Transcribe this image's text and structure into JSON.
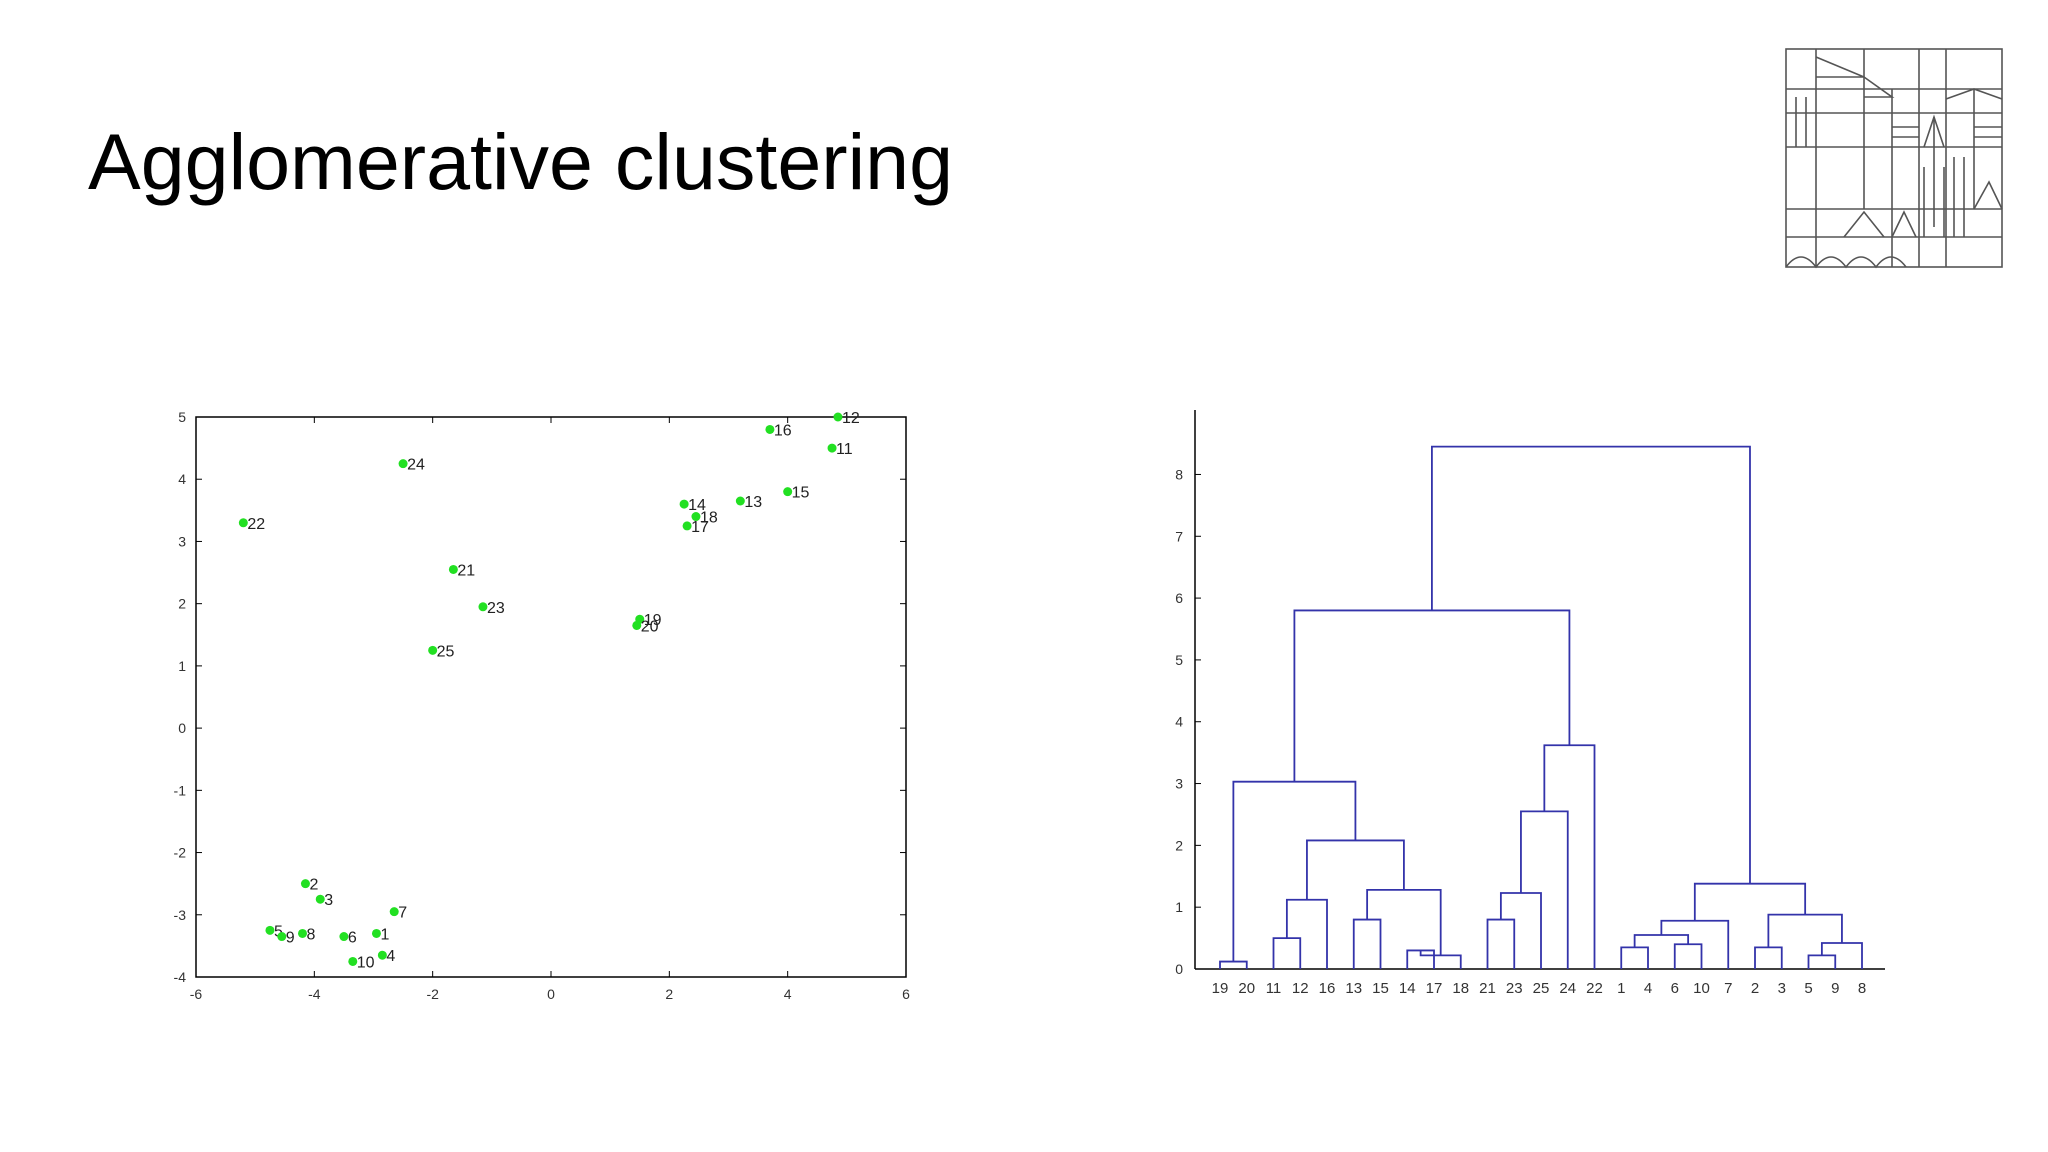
{
  "slide": {
    "title": "Agglomerative clustering"
  },
  "logo": {
    "icon": "university-logo-icon"
  },
  "colors": {
    "point": "#22e022",
    "dendrogram_line": "#3333aa",
    "axis": "#000000"
  },
  "chart_data": [
    {
      "type": "scatter",
      "title": "",
      "xlabel": "",
      "ylabel": "",
      "xlim": [
        -6,
        6
      ],
      "ylim": [
        -4,
        5
      ],
      "xticks": [
        -6,
        -4,
        -2,
        0,
        2,
        4,
        6
      ],
      "yticks": [
        -4,
        -3,
        -2,
        -1,
        0,
        1,
        2,
        3,
        4,
        5
      ],
      "grid": false,
      "points": [
        {
          "label": "1",
          "x": -2.95,
          "y": -3.3
        },
        {
          "label": "2",
          "x": -4.15,
          "y": -2.5
        },
        {
          "label": "3",
          "x": -3.9,
          "y": -2.75
        },
        {
          "label": "4",
          "x": -2.85,
          "y": -3.65
        },
        {
          "label": "5",
          "x": -4.75,
          "y": -3.25
        },
        {
          "label": "6",
          "x": -3.5,
          "y": -3.35
        },
        {
          "label": "7",
          "x": -2.65,
          "y": -2.95
        },
        {
          "label": "8",
          "x": -4.2,
          "y": -3.3
        },
        {
          "label": "9",
          "x": -4.55,
          "y": -3.35
        },
        {
          "label": "10",
          "x": -3.35,
          "y": -3.75
        },
        {
          "label": "11",
          "x": 4.75,
          "y": 4.5
        },
        {
          "label": "12",
          "x": 4.85,
          "y": 5.0
        },
        {
          "label": "13",
          "x": 3.2,
          "y": 3.65
        },
        {
          "label": "14",
          "x": 2.25,
          "y": 3.6
        },
        {
          "label": "15",
          "x": 4.0,
          "y": 3.8
        },
        {
          "label": "16",
          "x": 3.7,
          "y": 4.8
        },
        {
          "label": "17",
          "x": 2.3,
          "y": 3.25
        },
        {
          "label": "18",
          "x": 2.45,
          "y": 3.4
        },
        {
          "label": "19",
          "x": 1.5,
          "y": 1.75
        },
        {
          "label": "20",
          "x": 1.45,
          "y": 1.65
        },
        {
          "label": "21",
          "x": -1.65,
          "y": 2.55
        },
        {
          "label": "22",
          "x": -5.2,
          "y": 3.3
        },
        {
          "label": "23",
          "x": -1.15,
          "y": 1.95
        },
        {
          "label": "24",
          "x": -2.5,
          "y": 4.25
        },
        {
          "label": "25",
          "x": -2.0,
          "y": 1.25
        }
      ]
    },
    {
      "type": "dendrogram",
      "title": "",
      "xlabel": "",
      "ylabel": "",
      "ylim": [
        0,
        8.8
      ],
      "yticks": [
        0,
        1,
        2,
        3,
        4,
        5,
        6,
        7,
        8
      ],
      "leaf_order": [
        "19",
        "20",
        "11",
        "12",
        "16",
        "13",
        "15",
        "14",
        "17",
        "18",
        "21",
        "23",
        "25",
        "24",
        "22",
        "1",
        "4",
        "6",
        "10",
        "7",
        "2",
        "3",
        "5",
        "9",
        "8"
      ],
      "merges": [
        {
          "left": "19",
          "right": "20",
          "height": 0.12
        },
        {
          "left": "11",
          "right": "12",
          "height": 0.5
        },
        {
          "left": "11,12",
          "right": "16",
          "height": 1.12
        },
        {
          "left": "13",
          "right": "15",
          "height": 0.8
        },
        {
          "left": "14",
          "right": "17",
          "height": 0.3
        },
        {
          "left": "14,17",
          "right": "18",
          "height": 0.22
        },
        {
          "left": "13,15",
          "right": "14,17,18",
          "height": 1.28
        },
        {
          "left": "11,12,16",
          "right": "13,15,14,17,18",
          "height": 2.08
        },
        {
          "left": "19,20",
          "right": "11,12,16,13,15,14,17,18",
          "height": 3.03
        },
        {
          "left": "21",
          "right": "23",
          "height": 0.8
        },
        {
          "left": "21,23",
          "right": "25",
          "height": 1.23
        },
        {
          "left": "21,23,25",
          "right": "24",
          "height": 2.55
        },
        {
          "left": "21,23,25,24",
          "right": "22",
          "height": 3.62
        },
        {
          "left": "19..18",
          "right": "21..22",
          "height": 5.8
        },
        {
          "left": "1",
          "right": "4",
          "height": 0.35
        },
        {
          "left": "6",
          "right": "10",
          "height": 0.4
        },
        {
          "left": "1,4",
          "right": "6,10",
          "height": 0.55
        },
        {
          "left": "1,4,6,10",
          "right": "7",
          "height": 0.78
        },
        {
          "left": "2",
          "right": "3",
          "height": 0.35
        },
        {
          "left": "5",
          "right": "9",
          "height": 0.22
        },
        {
          "left": "5,9",
          "right": "8",
          "height": 0.42
        },
        {
          "left": "2,3",
          "right": "5,9,8",
          "height": 0.88
        },
        {
          "left": "1,4,6,10,7",
          "right": "2,3,5,9,8",
          "height": 1.38
        },
        {
          "left": "19..22",
          "right": "1..8",
          "height": 8.45
        }
      ]
    }
  ]
}
